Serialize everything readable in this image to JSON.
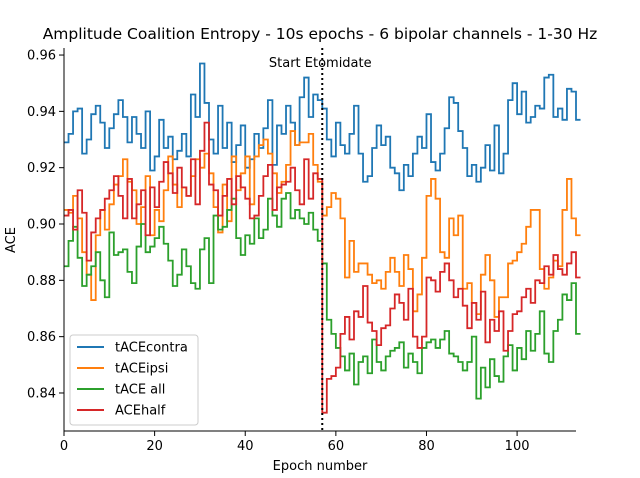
{
  "chart_data": {
    "type": "line",
    "style": "step",
    "title": "Amplitude Coalition Entropy - 10s epochs - 6 bipolar channels - 1-30 Hz",
    "xlabel": "Epoch number",
    "ylabel": "ACE",
    "xlim": [
      0,
      113
    ],
    "ylim": [
      0.8265,
      0.9625
    ],
    "xticks": [
      0,
      20,
      40,
      60,
      80,
      100
    ],
    "yticks": [
      0.84,
      0.86,
      0.88,
      0.9,
      0.92,
      0.94,
      0.96
    ],
    "ytick_labels": [
      "0.84",
      "0.86",
      "0.88",
      "0.90",
      "0.92",
      "0.94",
      "0.96"
    ],
    "legend": {
      "position": "lower-left"
    },
    "grid": false,
    "annotation": {
      "text": "Start Etomidate",
      "x": 57
    },
    "series": [
      {
        "name": "tACEcontra",
        "color": "#1f77b4",
        "values": [
          0.929,
          0.932,
          0.94,
          0.941,
          0.925,
          0.93,
          0.939,
          0.942,
          0.936,
          0.927,
          0.934,
          0.939,
          0.944,
          0.938,
          0.929,
          0.938,
          0.932,
          0.927,
          0.94,
          0.919,
          0.924,
          0.937,
          0.927,
          0.931,
          0.923,
          0.926,
          0.932,
          0.924,
          0.946,
          0.938,
          0.957,
          0.943,
          0.93,
          0.925,
          0.942,
          0.927,
          0.936,
          0.922,
          0.928,
          0.935,
          0.92,
          0.923,
          0.932,
          0.927,
          0.934,
          0.944,
          0.921,
          0.935,
          0.932,
          0.942,
          0.936,
          0.928,
          0.945,
          0.952,
          0.938,
          0.946,
          0.944,
          0.941,
          0.93,
          0.924,
          0.936,
          0.928,
          0.925,
          0.932,
          0.942,
          0.925,
          0.915,
          0.917,
          0.927,
          0.935,
          0.928,
          0.931,
          0.92,
          0.918,
          0.912,
          0.921,
          0.917,
          0.925,
          0.931,
          0.927,
          0.939,
          0.922,
          0.919,
          0.925,
          0.934,
          0.945,
          0.943,
          0.933,
          0.927,
          0.917,
          0.921,
          0.915,
          0.92,
          0.928,
          0.919,
          0.935,
          0.918,
          0.925,
          0.944,
          0.95,
          0.939,
          0.947,
          0.936,
          0.938,
          0.942,
          0.941,
          0.952,
          0.953,
          0.938,
          0.941,
          0.937,
          0.948,
          0.947,
          0.937
        ]
      },
      {
        "name": "tACEipsi",
        "color": "#ff7f0e",
        "values": [
          0.905,
          0.904,
          0.91,
          0.902,
          0.89,
          0.882,
          0.873,
          0.896,
          0.905,
          0.898,
          0.907,
          0.914,
          0.917,
          0.923,
          0.915,
          0.912,
          0.9,
          0.906,
          0.917,
          0.896,
          0.905,
          0.901,
          0.912,
          0.924,
          0.914,
          0.906,
          0.913,
          0.91,
          0.917,
          0.923,
          0.92,
          0.925,
          0.918,
          0.906,
          0.897,
          0.914,
          0.901,
          0.924,
          0.912,
          0.918,
          0.924,
          0.907,
          0.924,
          0.928,
          0.93,
          0.925,
          0.918,
          0.911,
          0.915,
          0.921,
          0.933,
          0.928,
          0.929,
          0.929,
          0.932,
          0.921,
          0.915,
          0.903,
          0.906,
          0.911,
          0.909,
          0.902,
          0.881,
          0.894,
          0.883,
          0.886,
          0.886,
          0.882,
          0.879,
          0.88,
          0.877,
          0.883,
          0.888,
          0.883,
          0.878,
          0.889,
          0.884,
          0.869,
          0.875,
          0.888,
          0.91,
          0.916,
          0.909,
          0.89,
          0.888,
          0.902,
          0.896,
          0.903,
          0.877,
          0.879,
          0.872,
          0.868,
          0.882,
          0.889,
          0.88,
          0.867,
          0.874,
          0.874,
          0.886,
          0.887,
          0.89,
          0.893,
          0.899,
          0.905,
          0.905,
          0.884,
          0.877,
          0.881,
          0.887,
          0.885,
          0.905,
          0.916,
          0.902,
          0.896
        ]
      },
      {
        "name": "tACE all",
        "color": "#2ca02c",
        "values": [
          0.885,
          0.894,
          0.899,
          0.888,
          0.878,
          0.882,
          0.885,
          0.89,
          0.88,
          0.874,
          0.897,
          0.889,
          0.89,
          0.891,
          0.883,
          0.879,
          0.892,
          0.9,
          0.89,
          0.892,
          0.895,
          0.899,
          0.893,
          0.887,
          0.878,
          0.882,
          0.891,
          0.885,
          0.879,
          0.877,
          0.891,
          0.895,
          0.879,
          0.903,
          0.898,
          0.899,
          0.905,
          0.909,
          0.895,
          0.889,
          0.896,
          0.893,
          0.902,
          0.895,
          0.898,
          0.909,
          0.903,
          0.899,
          0.909,
          0.911,
          0.902,
          0.905,
          0.902,
          0.9,
          0.904,
          0.898,
          0.894,
          0.886,
          0.866,
          0.861,
          0.856,
          0.853,
          0.848,
          0.854,
          0.843,
          0.851,
          0.853,
          0.847,
          0.859,
          0.851,
          0.848,
          0.853,
          0.855,
          0.856,
          0.858,
          0.849,
          0.854,
          0.851,
          0.847,
          0.856,
          0.858,
          0.859,
          0.856,
          0.859,
          0.862,
          0.854,
          0.853,
          0.851,
          0.848,
          0.851,
          0.86,
          0.838,
          0.849,
          0.842,
          0.852,
          0.846,
          0.844,
          0.853,
          0.857,
          0.848,
          0.856,
          0.852,
          0.862,
          0.855,
          0.861,
          0.869,
          0.854,
          0.851,
          0.862,
          0.866,
          0.875,
          0.873,
          0.879,
          0.861
        ]
      },
      {
        "name": "ACEhalf",
        "color": "#d62728",
        "values": [
          0.903,
          0.905,
          0.898,
          0.912,
          0.904,
          0.887,
          0.897,
          0.902,
          0.905,
          0.909,
          0.912,
          0.917,
          0.91,
          0.902,
          0.916,
          0.902,
          0.907,
          0.912,
          0.896,
          0.913,
          0.906,
          0.915,
          0.922,
          0.918,
          0.911,
          0.92,
          0.913,
          0.91,
          0.923,
          0.907,
          0.926,
          0.936,
          0.914,
          0.912,
          0.903,
          0.91,
          0.916,
          0.907,
          0.917,
          0.913,
          0.909,
          0.902,
          0.903,
          0.91,
          0.917,
          0.921,
          0.905,
          0.913,
          0.914,
          0.915,
          0.92,
          0.912,
          0.907,
          0.923,
          0.909,
          0.918,
          0.916,
          0.833,
          0.845,
          0.846,
          0.849,
          0.861,
          0.867,
          0.859,
          0.869,
          0.867,
          0.878,
          0.865,
          0.862,
          0.857,
          0.863,
          0.864,
          0.87,
          0.875,
          0.872,
          0.866,
          0.877,
          0.86,
          0.856,
          0.86,
          0.881,
          0.88,
          0.876,
          0.883,
          0.886,
          0.88,
          0.874,
          0.877,
          0.871,
          0.863,
          0.872,
          0.866,
          0.876,
          0.858,
          0.866,
          0.862,
          0.869,
          0.855,
          0.862,
          0.868,
          0.869,
          0.874,
          0.877,
          0.872,
          0.88,
          0.879,
          0.885,
          0.882,
          0.889,
          0.884,
          0.882,
          0.886,
          0.89,
          0.881
        ]
      }
    ]
  }
}
